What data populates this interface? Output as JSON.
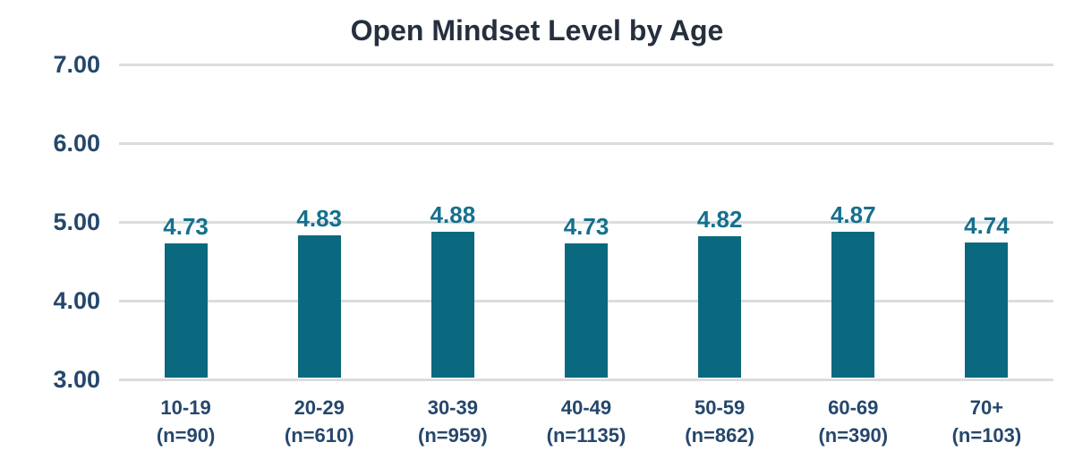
{
  "chart_data": {
    "type": "bar",
    "title": "Open Mindset Level by Age",
    "categories": [
      "10-19",
      "20-29",
      "30-39",
      "40-49",
      "50-59",
      "60-69",
      "70+"
    ],
    "sample_sizes": [
      "(n=90)",
      "(n=610)",
      "(n=959)",
      "(n=1135)",
      "(n=862)",
      "(n=390)",
      "(n=103)"
    ],
    "values": [
      4.73,
      4.83,
      4.88,
      4.73,
      4.82,
      4.87,
      4.74
    ],
    "value_labels": [
      "4.73",
      "4.83",
      "4.88",
      "4.73",
      "4.82",
      "4.87",
      "4.74"
    ],
    "y_ticks": [
      "7.00",
      "6.00",
      "5.00",
      "4.00",
      "3.00"
    ],
    "ylim": [
      3,
      7
    ],
    "grid": true,
    "legend_position": "none",
    "xlabel": "",
    "ylabel": "",
    "colors": {
      "bar": "#0B697F",
      "value_label": "#15708D",
      "axis_label": "#25476C",
      "title": "#262F3E",
      "gridline": "#DADDDE",
      "background": "#FFFFFF"
    }
  }
}
